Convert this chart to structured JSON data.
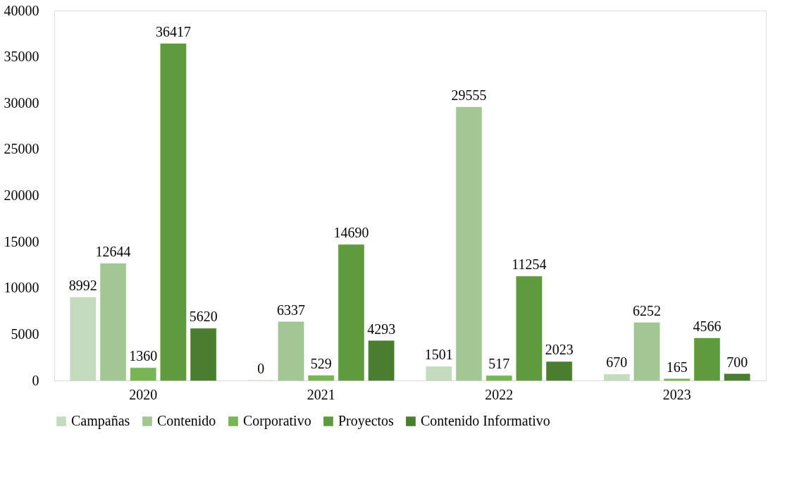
{
  "chart_data": {
    "type": "bar",
    "categories": [
      "2020",
      "2021",
      "2022",
      "2023"
    ],
    "series": [
      {
        "name": "Campañas",
        "color": "#c5dbbf",
        "values": [
          8992,
          0,
          1501,
          670
        ]
      },
      {
        "name": "Contenido",
        "color": "#a3c794",
        "values": [
          12644,
          6337,
          29555,
          6252
        ]
      },
      {
        "name": "Corporativo",
        "color": "#77b653",
        "values": [
          1360,
          529,
          517,
          165
        ]
      },
      {
        "name": "Proyectos",
        "color": "#5f9a3f",
        "values": [
          36417,
          14690,
          11254,
          4566
        ]
      },
      {
        "name": "Contenido Informativo",
        "color": "#4b7d30",
        "values": [
          5620,
          4293,
          2023,
          700
        ]
      }
    ],
    "ylim": [
      0,
      40000
    ],
    "yticks": [
      0,
      5000,
      10000,
      15000,
      20000,
      25000,
      30000,
      35000,
      40000
    ],
    "data_labels": true,
    "legend": "bottom",
    "grid": false
  }
}
